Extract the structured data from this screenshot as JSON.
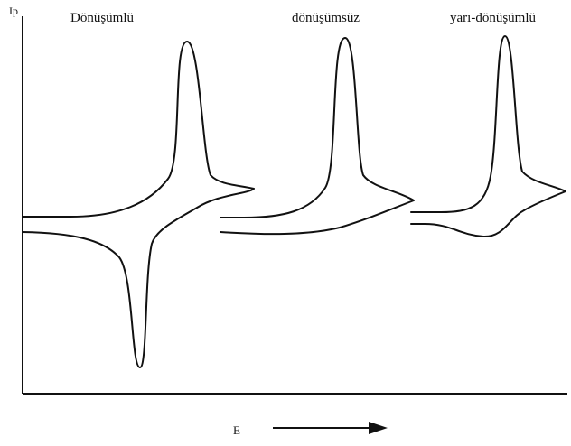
{
  "labels": {
    "y_axis": "Ip",
    "x_axis": "E",
    "reversible": "Dönüşümlü",
    "irreversible": "dönüşümsüz",
    "quasi_reversible": "yarı-dönüşümlü"
  }
}
